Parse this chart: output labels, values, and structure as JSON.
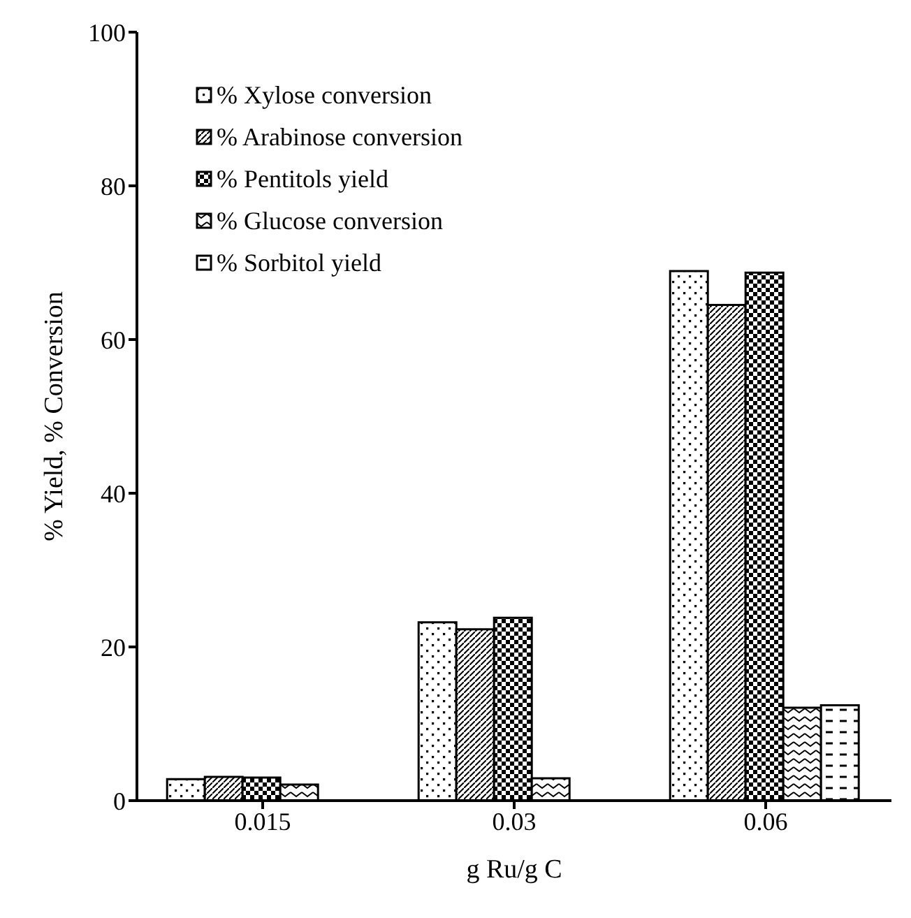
{
  "chart_data": {
    "type": "bar",
    "xlabel": "g Ru/g C",
    "ylabel": "% Yield, % Conversion",
    "categories": [
      "0.015",
      "0.03",
      "0.06"
    ],
    "series": [
      {
        "name": "% Xylose conversion",
        "color": "#000000",
        "values": [
          2.8,
          23.2,
          68.9
        ]
      },
      {
        "name": "% Arabinose conversion",
        "color": "#000000",
        "values": [
          3.1,
          22.3,
          64.5
        ]
      },
      {
        "name": "% Pentitols yield",
        "color": "#000000",
        "values": [
          3.0,
          23.8,
          68.7
        ]
      },
      {
        "name": "% Glucose conversion",
        "color": "#000000",
        "values": [
          2.1,
          2.9,
          12.1
        ]
      },
      {
        "name": "% Sorbitol yield",
        "color": "#000000",
        "values": [
          null,
          null,
          12.4
        ]
      }
    ],
    "ylim": [
      0,
      100
    ],
    "yticks": [
      0,
      20,
      40,
      60,
      80,
      100
    ],
    "grid": false,
    "legend": "top left"
  }
}
